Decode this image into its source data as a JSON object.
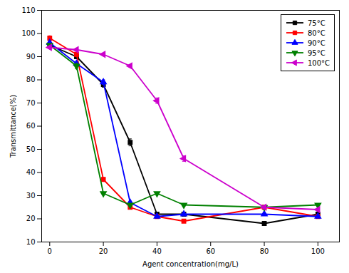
{
  "chart_data": {
    "type": "line",
    "xlabel": "Agent concentration(mg/L)",
    "ylabel": "Transmittance(%)",
    "x": [
      0,
      10,
      20,
      30,
      40,
      50,
      80,
      100
    ],
    "series": [
      {
        "name": "75°C",
        "color": "#000000",
        "marker": "square",
        "values": [
          95,
          90,
          78,
          53,
          22,
          22,
          18,
          22
        ],
        "error": [
          0.8,
          0.8,
          1.2,
          1.5,
          0.5,
          0.5,
          0.5,
          0.5
        ]
      },
      {
        "name": "80°C",
        "color": "#ff0000",
        "marker": "square",
        "values": [
          98,
          91,
          37,
          25,
          21,
          19,
          25,
          21
        ],
        "error": [
          1.0,
          0.8,
          0.8,
          0.8,
          0.5,
          0.5,
          0.5,
          0.5
        ]
      },
      {
        "name": "90°C",
        "color": "#0000ff",
        "marker": "triangle-up",
        "values": [
          96,
          87,
          79,
          27,
          21,
          22,
          22,
          21
        ],
        "error": [
          0.8,
          0.8,
          1.0,
          0.5,
          0.5,
          0.5,
          0.5,
          0.5
        ]
      },
      {
        "name": "95°C",
        "color": "#008000",
        "marker": "triangle-down",
        "values": [
          95,
          86,
          31,
          26,
          31,
          26,
          25,
          26
        ],
        "error": [
          0.5,
          1.2,
          0.5,
          0.5,
          0.5,
          0.5,
          0.5,
          0.5
        ]
      },
      {
        "name": "100°C",
        "color": "#cc00cc",
        "marker": "triangle-left",
        "values": [
          94,
          93,
          91,
          86,
          71,
          46,
          25,
          24
        ],
        "error": [
          0.5,
          0.5,
          0.5,
          0.5,
          1.2,
          1.2,
          0.5,
          0.5
        ]
      }
    ],
    "xlim": [
      -3,
      108
    ],
    "ylim": [
      10,
      110
    ],
    "xticks": [
      0,
      20,
      40,
      60,
      80,
      100
    ],
    "yticks": [
      10,
      20,
      30,
      40,
      50,
      60,
      70,
      80,
      90,
      100,
      110
    ],
    "grid": false,
    "legend": "upper right"
  }
}
